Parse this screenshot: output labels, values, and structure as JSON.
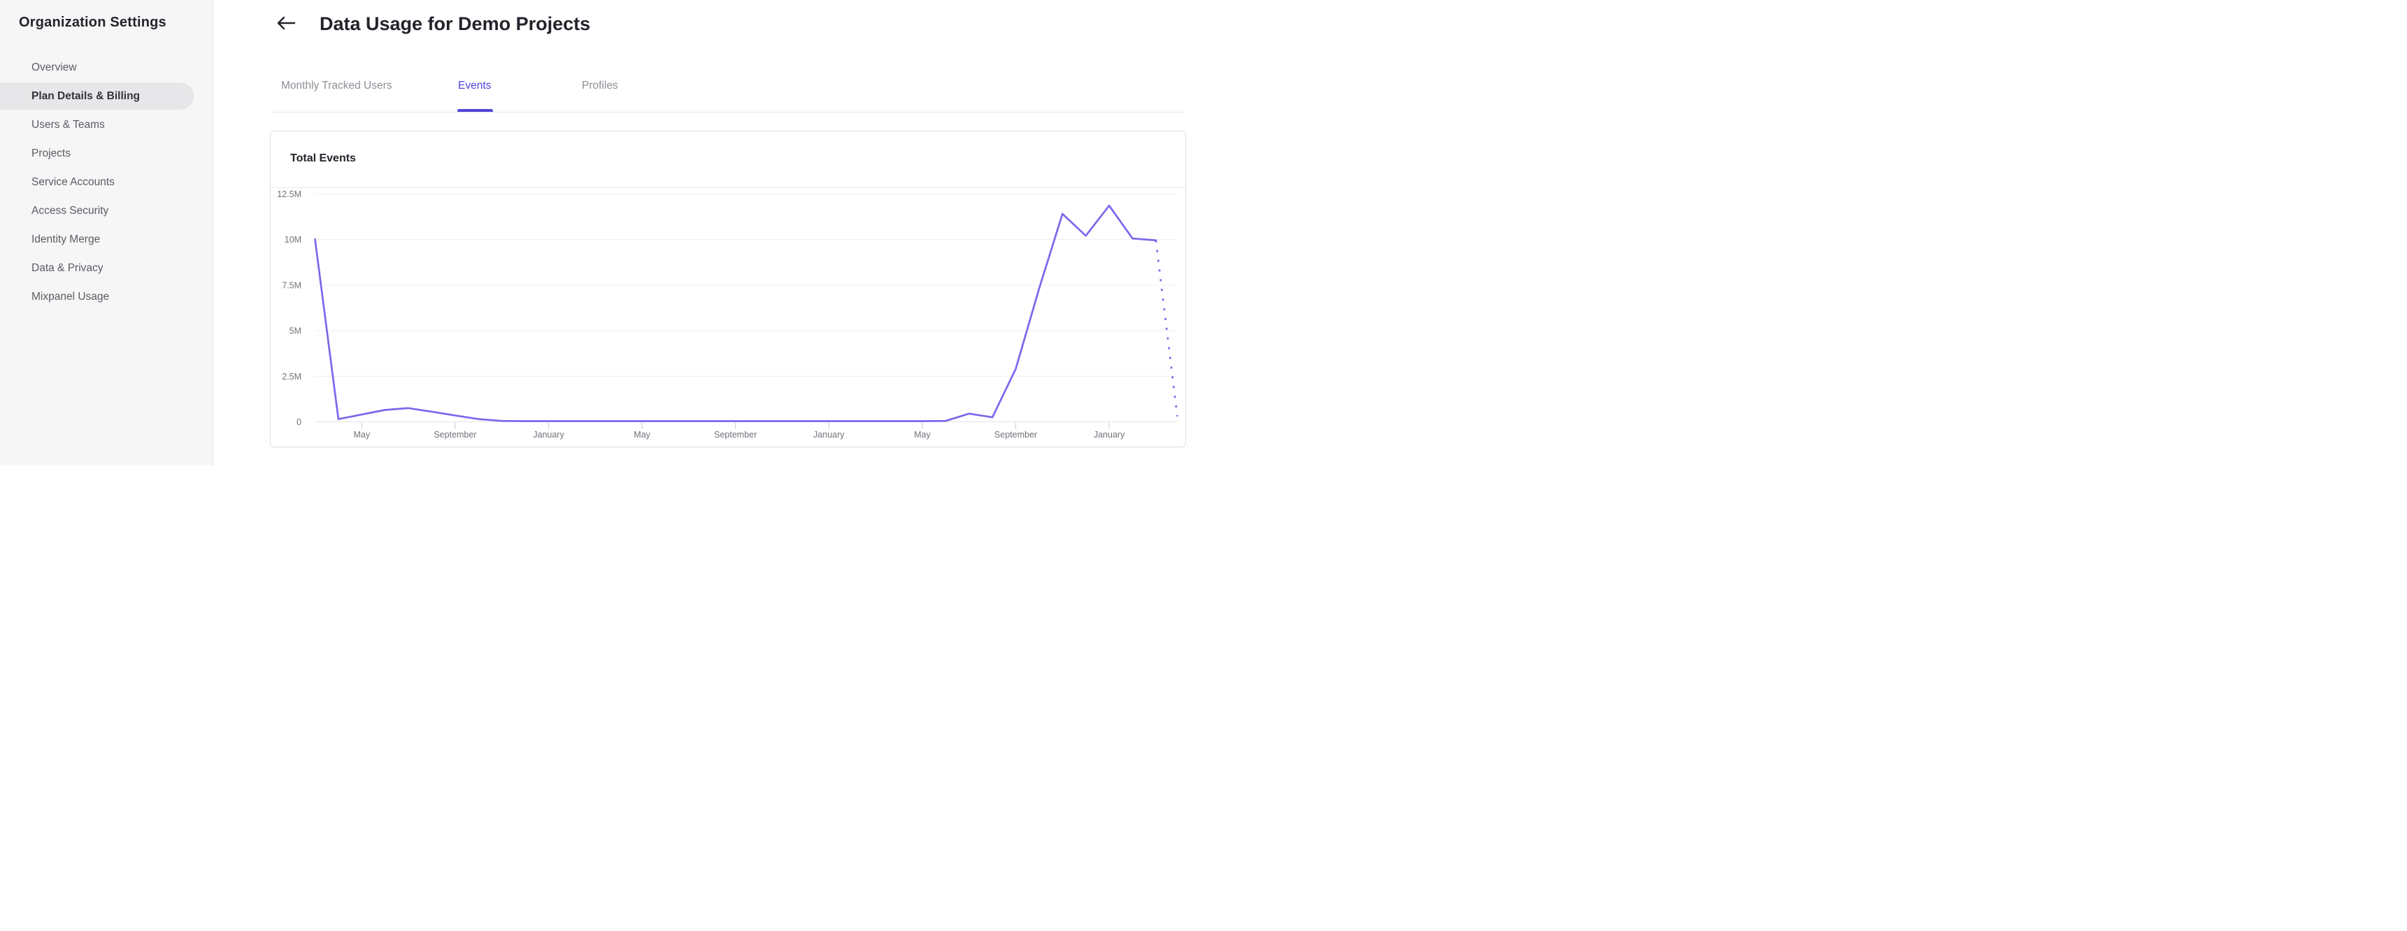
{
  "sidebar": {
    "title": "Organization Settings",
    "items": [
      {
        "label": "Overview",
        "active": false
      },
      {
        "label": "Plan Details & Billing",
        "active": true
      },
      {
        "label": "Users & Teams",
        "active": false
      },
      {
        "label": "Projects",
        "active": false
      },
      {
        "label": "Service Accounts",
        "active": false
      },
      {
        "label": "Access Security",
        "active": false
      },
      {
        "label": "Identity Merge",
        "active": false
      },
      {
        "label": "Data & Privacy",
        "active": false
      },
      {
        "label": "Mixpanel Usage",
        "active": false
      }
    ]
  },
  "header": {
    "title": "Data Usage for Demo Projects",
    "back_icon": "left-arrow-icon"
  },
  "tabs": [
    {
      "label": "Monthly Tracked Users",
      "active": false
    },
    {
      "label": "Events",
      "active": true
    },
    {
      "label": "Profiles",
      "active": false
    }
  ],
  "card": {
    "title": "Total Events"
  },
  "colors": {
    "accent_purple": "#4f44d8",
    "line_purple": "#7a68ec",
    "sidebar_bg": "#f6f6f7",
    "active_item_bg": "#e7e7e9",
    "gridline": "#eeeef1",
    "baseline": "#e3e3e6",
    "tick": "#d9d9dd",
    "axis_text": "#72727b"
  },
  "chart_data": {
    "type": "line",
    "title": "Total Events",
    "legend": false,
    "grid": "horizontal",
    "y_axis": {
      "min_m": 0,
      "max_m": 12.5,
      "ticks": [
        {
          "label": "12.5M",
          "value_m": 12.5
        },
        {
          "label": "10M",
          "value_m": 10
        },
        {
          "label": "7.5M",
          "value_m": 7.5
        },
        {
          "label": "5M",
          "value_m": 5
        },
        {
          "label": "2.5M",
          "value_m": 2.5
        },
        {
          "label": "0",
          "value_m": 0
        }
      ]
    },
    "x_axis": {
      "start_month": "March",
      "months_total": 38,
      "tick_month_indices": [
        2,
        6,
        10,
        14,
        18,
        22,
        26,
        30,
        34
      ],
      "tick_labels": [
        "May",
        "September",
        "January",
        "May",
        "September",
        "January",
        "May",
        "September",
        "January"
      ]
    },
    "series": [
      {
        "name": "Total Events",
        "unit": "million events",
        "projected_last_point_dotted": true,
        "points": [
          {
            "month": "Mar",
            "value_m": 10.0
          },
          {
            "month": "Apr",
            "value_m": 0.15
          },
          {
            "month": "May",
            "value_m": 0.4
          },
          {
            "month": "Jun",
            "value_m": 0.65
          },
          {
            "month": "Jul",
            "value_m": 0.75
          },
          {
            "month": "Aug",
            "value_m": 0.55
          },
          {
            "month": "Sep",
            "value_m": 0.35
          },
          {
            "month": "Oct",
            "value_m": 0.15
          },
          {
            "month": "Nov",
            "value_m": 0.05
          },
          {
            "month": "Dec",
            "value_m": 0.04
          },
          {
            "month": "Jan",
            "value_m": 0.04
          },
          {
            "month": "Feb",
            "value_m": 0.04
          },
          {
            "month": "Mar",
            "value_m": 0.04
          },
          {
            "month": "Apr",
            "value_m": 0.04
          },
          {
            "month": "May",
            "value_m": 0.04
          },
          {
            "month": "Jun",
            "value_m": 0.04
          },
          {
            "month": "Jul",
            "value_m": 0.04
          },
          {
            "month": "Aug",
            "value_m": 0.04
          },
          {
            "month": "Sep",
            "value_m": 0.04
          },
          {
            "month": "Oct",
            "value_m": 0.04
          },
          {
            "month": "Nov",
            "value_m": 0.04
          },
          {
            "month": "Dec",
            "value_m": 0.04
          },
          {
            "month": "Jan",
            "value_m": 0.04
          },
          {
            "month": "Feb",
            "value_m": 0.04
          },
          {
            "month": "Mar",
            "value_m": 0.04
          },
          {
            "month": "Apr",
            "value_m": 0.04
          },
          {
            "month": "May",
            "value_m": 0.04
          },
          {
            "month": "Jun",
            "value_m": 0.05
          },
          {
            "month": "Jul",
            "value_m": 0.45
          },
          {
            "month": "Aug",
            "value_m": 0.25
          },
          {
            "month": "Sep",
            "value_m": 2.9
          },
          {
            "month": "Oct",
            "value_m": 7.3
          },
          {
            "month": "Nov",
            "value_m": 11.4
          },
          {
            "month": "Dec",
            "value_m": 10.2
          },
          {
            "month": "Jan",
            "value_m": 11.85
          },
          {
            "month": "Feb",
            "value_m": 10.05
          },
          {
            "month": "Mar",
            "value_m": 9.95
          },
          {
            "month": "Apr",
            "value_m": 0.3
          }
        ]
      }
    ]
  }
}
